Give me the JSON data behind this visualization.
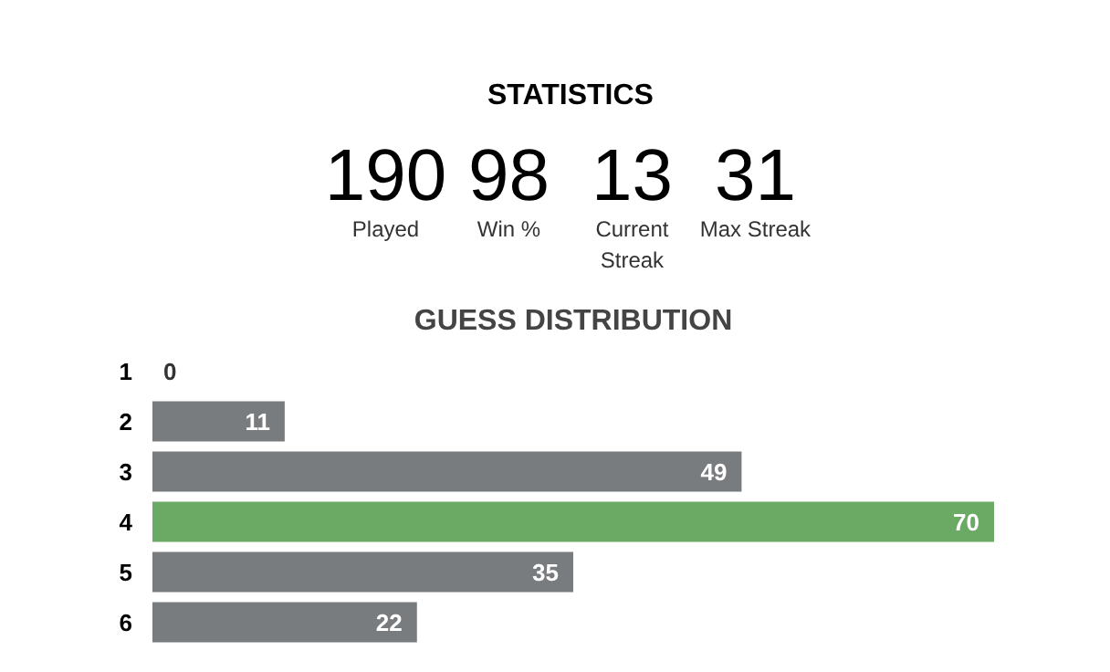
{
  "chart_data": [
    {
      "type": "other",
      "title": "STATISTICS",
      "categories": [
        "Played",
        "Win %",
        "Current Streak",
        "Max Streak"
      ],
      "values": [
        190,
        98,
        13,
        31
      ],
      "data_labels": true
    },
    {
      "type": "bar",
      "orientation": "horizontal",
      "title": "GUESS DISTRIBUTION",
      "categories": [
        "1",
        "2",
        "3",
        "4",
        "5",
        "6"
      ],
      "values": [
        0,
        11,
        49,
        70,
        35,
        22
      ],
      "colors": [
        "#787c7e",
        "#787c7e",
        "#787c7e",
        "#6aaa64",
        "#787c7e",
        "#787c7e"
      ],
      "data_labels": true,
      "tick_labels": "y",
      "grid": false
    }
  ]
}
